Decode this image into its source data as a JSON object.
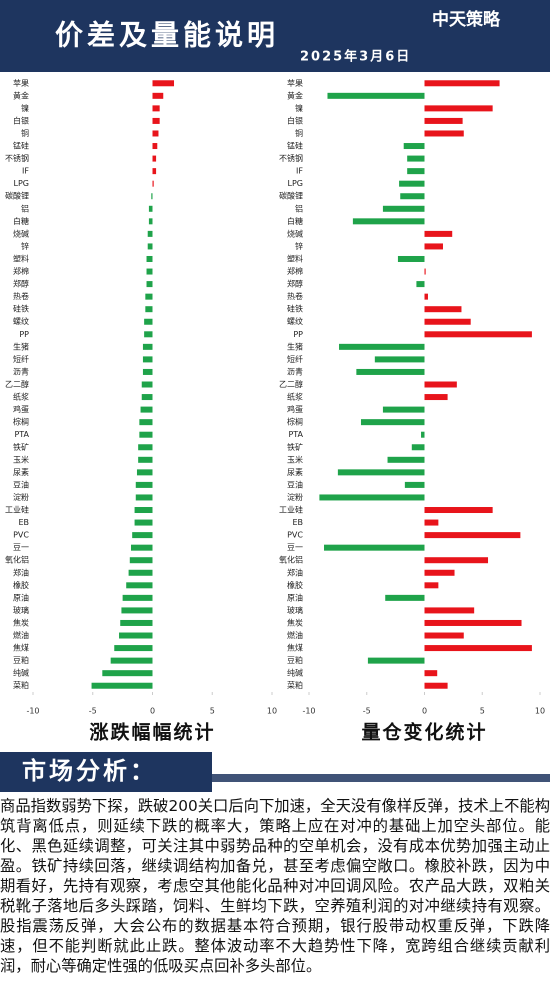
{
  "header": {
    "title": "价差及量能说明",
    "date": "2025年3月6日",
    "logo": "中天策略"
  },
  "chart_data": [
    {
      "type": "bar",
      "horizontal": true,
      "title": "涨跌幅幅统计",
      "categories": [
        "苹果",
        "黄金",
        "镍",
        "白银",
        "铜",
        "锰硅",
        "不锈钢",
        "IF",
        "LPG",
        "碳酸锂",
        "铝",
        "白糖",
        "烧碱",
        "锌",
        "塑料",
        "郑棉",
        "郑醇",
        "热卷",
        "硅铁",
        "螺纹",
        "PP",
        "生猪",
        "短纤",
        "沥青",
        "乙二醇",
        "纸浆",
        "鸡蛋",
        "棕榈",
        "PTA",
        "铁矿",
        "玉米",
        "尿素",
        "豆油",
        "淀粉",
        "工业硅",
        "EB",
        "PVC",
        "豆一",
        "氧化铝",
        "郑油",
        "橡胶",
        "原油",
        "玻璃",
        "焦炭",
        "燃油",
        "焦煤",
        "豆粕",
        "纯碱",
        "菜粕"
      ],
      "values": [
        1.8,
        0.9,
        0.6,
        0.6,
        0.5,
        0.4,
        0.3,
        0.3,
        0.1,
        -0.1,
        -0.3,
        -0.3,
        -0.4,
        -0.4,
        -0.5,
        -0.5,
        -0.5,
        -0.6,
        -0.6,
        -0.7,
        -0.7,
        -0.8,
        -0.8,
        -0.8,
        -0.9,
        -0.9,
        -1.0,
        -1.1,
        -1.1,
        -1.2,
        -1.2,
        -1.3,
        -1.4,
        -1.4,
        -1.5,
        -1.5,
        -1.7,
        -1.8,
        -1.9,
        -2.0,
        -2.2,
        -2.5,
        -2.6,
        -2.7,
        -2.8,
        -3.2,
        -3.5,
        -4.2,
        -5.1
      ],
      "positive_color": "#e8141b",
      "negative_color": "#1fa34a",
      "xlim": [
        -10,
        10
      ],
      "xticks": [
        -10,
        -5,
        0,
        5,
        10
      ]
    },
    {
      "type": "bar",
      "horizontal": true,
      "title": "量仓变化统计",
      "categories": [
        "苹果",
        "黄金",
        "镍",
        "白银",
        "铜",
        "锰硅",
        "不锈钢",
        "IF",
        "LPG",
        "碳酸锂",
        "铝",
        "白糖",
        "烧碱",
        "锌",
        "塑料",
        "郑棉",
        "郑醇",
        "热卷",
        "硅铁",
        "螺纹",
        "PP",
        "生猪",
        "短纤",
        "沥青",
        "乙二醇",
        "纸浆",
        "鸡蛋",
        "棕榈",
        "PTA",
        "铁矿",
        "玉米",
        "尿素",
        "豆油",
        "淀粉",
        "工业硅",
        "EB",
        "PVC",
        "豆一",
        "氧化铝",
        "郑油",
        "橡胶",
        "原油",
        "玻璃",
        "焦炭",
        "燃油",
        "焦煤",
        "豆粕",
        "纯碱",
        "菜粕"
      ],
      "values": [
        6.5,
        -8.4,
        5.9,
        3.3,
        3.4,
        -1.8,
        -1.5,
        -1.5,
        -2.2,
        -2.1,
        -3.6,
        -6.2,
        2.4,
        1.6,
        -2.3,
        0.1,
        -0.7,
        0.3,
        3.2,
        4.0,
        9.3,
        -7.4,
        -4.3,
        -5.9,
        2.8,
        2.0,
        -3.6,
        -5.5,
        -0.3,
        -1.1,
        -3.2,
        -7.5,
        -1.7,
        -9.1,
        5.9,
        1.2,
        8.3,
        -8.7,
        5.5,
        2.6,
        1.2,
        -3.4,
        4.3,
        8.4,
        3.4,
        9.3,
        -4.9,
        1.1,
        2.0
      ],
      "positive_color": "#e8141b",
      "negative_color": "#1fa34a",
      "xlim": [
        -10,
        10
      ],
      "xticks": [
        -10,
        -5,
        0,
        5,
        10
      ]
    }
  ],
  "analysis": {
    "heading": "市场分析：",
    "text": "商品指数弱势下探，跌破200关口后向下加速，全天没有像样反弹，技术上不能构筑背离低点，则延续下跌的概率大，策略上应在对冲的基础上加空头部位。能化、黑色延续调整，可关注其中弱势品种的空单机会，没有成本优势加强主动止盈。铁矿持续回落，继续调结构加备兑，甚至考虑偏空敞口。橡胶补跌，因为中期看好，先持有观察，考虑空其他能化品种对冲回调风险。农产品大跌，双粕关税靴子落地后多头踩踏，饲料、生鲜均下跌，空养殖利润的对冲继续持有观察。股指震荡反弹，大会公布的数据基本符合预期，银行股带动权重反弹，下跌降速，但不能判断就此止跌。整体波动率不大趋势性下降，宽跨组合继续贡献利润，耐心等确定性强的低吸买点回补多头部位。"
  }
}
